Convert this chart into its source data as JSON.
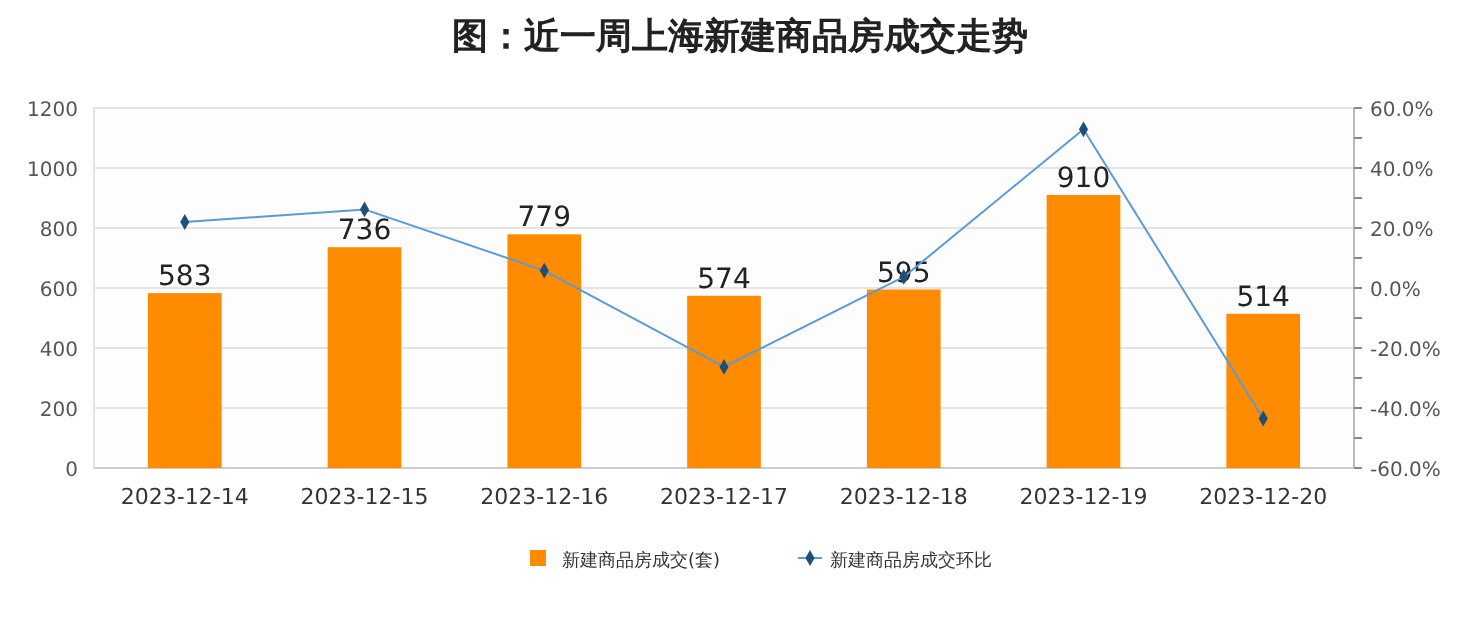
{
  "chart_data": {
    "type": "bar",
    "title": "图：近一周上海新建商品房成交走势",
    "categories": [
      "2023-12-14",
      "2023-12-15",
      "2023-12-16",
      "2023-12-17",
      "2023-12-18",
      "2023-12-19",
      "2023-12-20"
    ],
    "series": [
      {
        "name": "新建商品房成交(套)",
        "color": "#ff8c00",
        "values": [
          583,
          736,
          779,
          574,
          595,
          910,
          514
        ],
        "value_labels": [
          "583",
          "736",
          "779",
          "574",
          "595",
          "910",
          "514"
        ]
      },
      {
        "name": "新建商品房成交环比",
        "type": "line",
        "axis": "y2",
        "color": "#5b9bd5",
        "values": [
          22,
          26.2,
          5.8,
          -26.3,
          3.7,
          52.9,
          -43.5
        ]
      }
    ],
    "ylim": [
      0,
      1200
    ],
    "yticks": [
      0,
      200,
      400,
      600,
      800,
      1000,
      1200
    ],
    "y2lim": [
      -60,
      60
    ],
    "y2ticks": [
      {
        "value": -60,
        "label": "-60.0%"
      },
      {
        "value": -50,
        "label": null
      },
      {
        "value": -40,
        "label": "-40.0%"
      },
      {
        "value": -30,
        "label": null
      },
      {
        "value": -20,
        "label": "-20.0%"
      },
      {
        "value": -10,
        "label": null
      },
      {
        "value": 0,
        "label": "0.0%"
      },
      {
        "value": 10,
        "label": null
      },
      {
        "value": 20,
        "label": "20.0%"
      },
      {
        "value": 30,
        "label": null
      },
      {
        "value": 40,
        "label": "40.0%"
      },
      {
        "value": 50,
        "label": null
      },
      {
        "value": 60,
        "label": "60.0%"
      }
    ],
    "grid": "y",
    "legend": "bottom",
    "marker": "diamond",
    "line_style": "solid"
  }
}
